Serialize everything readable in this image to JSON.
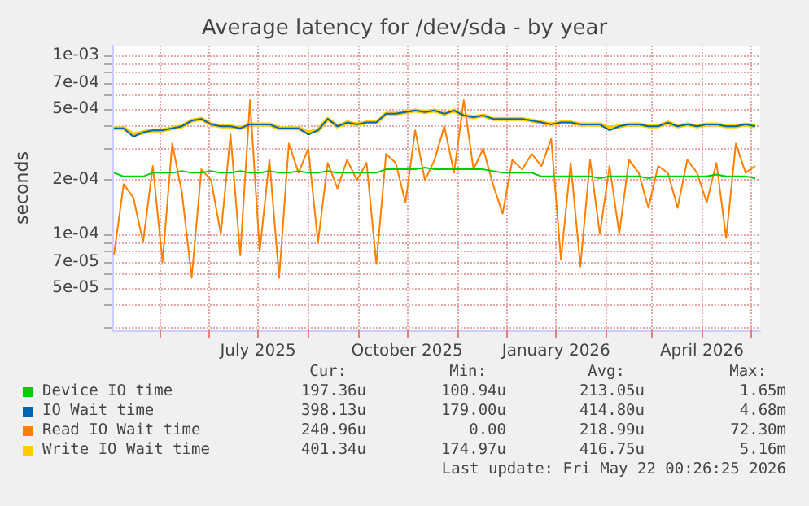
{
  "chart_data": {
    "type": "line",
    "title": "Average latency for /dev/sda - by year",
    "ylabel": "seconds",
    "log": "y",
    "grid": true,
    "legend": "bottom",
    "x": [
      "2025-04-03",
      "2025-04-09",
      "2025-04-15",
      "2025-04-21",
      "2025-04-27",
      "2025-05-03",
      "2025-05-09",
      "2025-05-15",
      "2025-05-21",
      "2025-05-27",
      "2025-06-02",
      "2025-06-08",
      "2025-06-14",
      "2025-06-20",
      "2025-06-26",
      "2025-07-02",
      "2025-07-08",
      "2025-07-14",
      "2025-07-20",
      "2025-07-26",
      "2025-08-01",
      "2025-08-07",
      "2025-08-13",
      "2025-08-19",
      "2025-08-25",
      "2025-08-31",
      "2025-09-06",
      "2025-09-12",
      "2025-09-18",
      "2025-09-24",
      "2025-09-30",
      "2025-10-06",
      "2025-10-12",
      "2025-10-18",
      "2025-10-24",
      "2025-10-30",
      "2025-11-05",
      "2025-11-11",
      "2025-11-17",
      "2025-11-23",
      "2025-11-29",
      "2025-12-05",
      "2025-12-11",
      "2025-12-17",
      "2025-12-23",
      "2025-12-29",
      "2026-01-04",
      "2026-01-10",
      "2026-01-16",
      "2026-01-22",
      "2026-01-28",
      "2026-02-03",
      "2026-02-09",
      "2026-02-15",
      "2026-02-21",
      "2026-02-27",
      "2026-03-05",
      "2026-03-11",
      "2026-03-17",
      "2026-03-23",
      "2026-03-29",
      "2026-04-04",
      "2026-04-10",
      "2026-04-16",
      "2026-04-22",
      "2026-04-28",
      "2026-05-04"
    ],
    "xlim": [
      "2025-04-02",
      "2026-05-07"
    ],
    "xticks": [
      {
        "value": "2025-05-01",
        "label": null
      },
      {
        "value": "2025-06-01",
        "label": null
      },
      {
        "value": "2025-07-01",
        "label": "July 2025"
      },
      {
        "value": "2025-08-01",
        "label": null
      },
      {
        "value": "2025-09-01",
        "label": null
      },
      {
        "value": "2025-10-01",
        "label": "October 2025"
      },
      {
        "value": "2025-11-01",
        "label": null
      },
      {
        "value": "2025-12-01",
        "label": null
      },
      {
        "value": "2026-01-01",
        "label": "January 2026"
      },
      {
        "value": "2026-02-01",
        "label": null
      },
      {
        "value": "2026-03-01",
        "label": null
      },
      {
        "value": "2026-04-01",
        "label": "April 2026"
      },
      {
        "value": "2026-05-01",
        "label": null
      }
    ],
    "ylim": [
      2.9e-05,
      0.00113
    ],
    "yticks": [
      {
        "value": 3e-05,
        "label": null
      },
      {
        "value": 4e-05,
        "label": null
      },
      {
        "value": 5e-05,
        "label": "5e-05"
      },
      {
        "value": 6e-05,
        "label": null
      },
      {
        "value": 7e-05,
        "label": "7e-05"
      },
      {
        "value": 8e-05,
        "label": null
      },
      {
        "value": 9e-05,
        "label": null
      },
      {
        "value": 0.0001,
        "label": "1e-04"
      },
      {
        "value": 0.0002,
        "label": "2e-04"
      },
      {
        "value": 0.0003,
        "label": null
      },
      {
        "value": 0.0004,
        "label": null
      },
      {
        "value": 0.0005,
        "label": "5e-04"
      },
      {
        "value": 0.0006,
        "label": null
      },
      {
        "value": 0.0007,
        "label": "7e-04"
      },
      {
        "value": 0.0008,
        "label": null
      },
      {
        "value": 0.0009,
        "label": null
      },
      {
        "value": 0.001,
        "label": "1e-03"
      }
    ],
    "series": [
      {
        "name": "Device IO time",
        "color": "#00cc00",
        "values": [
          0.00022,
          0.00021,
          0.00021,
          0.00021,
          0.00022,
          0.00022,
          0.00022,
          0.000225,
          0.00022,
          0.00022,
          0.000225,
          0.00022,
          0.00022,
          0.000225,
          0.00022,
          0.00022,
          0.000225,
          0.00022,
          0.00022,
          0.000225,
          0.00022,
          0.00022,
          0.000225,
          0.00022,
          0.00022,
          0.00022,
          0.00022,
          0.00022,
          0.00023,
          0.00023,
          0.00023,
          0.00023,
          0.000235,
          0.00023,
          0.00023,
          0.00023,
          0.00023,
          0.00023,
          0.00023,
          0.000225,
          0.00022,
          0.00022,
          0.00022,
          0.00022,
          0.00021,
          0.00021,
          0.00021,
          0.00021,
          0.00021,
          0.00021,
          0.000205,
          0.00021,
          0.00021,
          0.00021,
          0.00021,
          0.000205,
          0.00021,
          0.00021,
          0.00021,
          0.00021,
          0.00021,
          0.00021,
          0.000215,
          0.00021,
          0.00021,
          0.00021,
          0.000205
        ]
      },
      {
        "name": "IO Wait time",
        "color": "#0066b3",
        "values": [
          0.00039,
          0.00039,
          0.00035,
          0.00037,
          0.00038,
          0.00038,
          0.00039,
          0.0004,
          0.00043,
          0.00044,
          0.00041,
          0.0004,
          0.0004,
          0.00039,
          0.00041,
          0.00041,
          0.00041,
          0.00039,
          0.00039,
          0.00039,
          0.00036,
          0.00038,
          0.00044,
          0.0004,
          0.00042,
          0.00041,
          0.00042,
          0.00042,
          0.00047,
          0.00047,
          0.00048,
          0.00049,
          0.00048,
          0.00049,
          0.00047,
          0.00049,
          0.00046,
          0.00045,
          0.00046,
          0.00044,
          0.00044,
          0.00044,
          0.00044,
          0.00043,
          0.00042,
          0.00041,
          0.00042,
          0.00042,
          0.00041,
          0.00041,
          0.00041,
          0.00038,
          0.0004,
          0.00041,
          0.00041,
          0.0004,
          0.0004,
          0.00042,
          0.0004,
          0.00041,
          0.0004,
          0.00041,
          0.00041,
          0.0004,
          0.0004,
          0.00041,
          0.0004
        ]
      },
      {
        "name": "Read IO Wait time",
        "color": "#ff8000",
        "values": [
          7.6e-05,
          0.00019,
          0.00016,
          9e-05,
          0.00024,
          7e-05,
          0.00032,
          0.00017,
          5.7e-05,
          0.00023,
          0.0002,
          0.0001,
          0.00036,
          7.6e-05,
          0.00056,
          8e-05,
          0.00026,
          5.7e-05,
          0.00032,
          0.00022,
          0.0003,
          9e-05,
          0.00025,
          0.00018,
          0.00026,
          0.0002,
          0.00025,
          6.8e-05,
          0.00028,
          0.00025,
          0.00015,
          0.00038,
          0.0002,
          0.00026,
          0.0004,
          0.00022,
          0.00056,
          0.00023,
          0.0003,
          0.00019,
          0.00013,
          0.00026,
          0.00023,
          0.00028,
          0.00024,
          0.00034,
          7.2e-05,
          0.00025,
          6.6e-05,
          0.00026,
          0.0001,
          0.00024,
          0.0001,
          0.00026,
          0.00022,
          0.00014,
          0.00024,
          0.00022,
          0.00014,
          0.00026,
          0.00022,
          0.00015,
          0.00025,
          9.5e-05,
          0.00032,
          0.00022,
          0.00024
        ]
      },
      {
        "name": "Write IO Wait time",
        "color": "#ffcc00",
        "values": [
          0.00039,
          0.00039,
          0.00036,
          0.00037,
          0.00038,
          0.00038,
          0.00039,
          0.0004,
          0.00043,
          0.00044,
          0.00041,
          0.0004,
          0.0004,
          0.00039,
          0.00041,
          0.00041,
          0.00041,
          0.00039,
          0.00039,
          0.00039,
          0.00037,
          0.00038,
          0.00044,
          0.0004,
          0.00042,
          0.00041,
          0.00042,
          0.00042,
          0.00047,
          0.00047,
          0.00048,
          0.00049,
          0.00048,
          0.00049,
          0.00047,
          0.00049,
          0.00046,
          0.00045,
          0.00046,
          0.00044,
          0.00044,
          0.00044,
          0.00044,
          0.00043,
          0.00042,
          0.00041,
          0.00042,
          0.00042,
          0.00041,
          0.00041,
          0.00041,
          0.00039,
          0.0004,
          0.00041,
          0.00041,
          0.0004,
          0.0004,
          0.00042,
          0.0004,
          0.00041,
          0.0004,
          0.00041,
          0.00041,
          0.0004,
          0.0004,
          0.00041,
          0.0004
        ]
      }
    ],
    "annotations": [
      "Cur:",
      "Min:",
      "Avg:",
      "Max:",
      "197.36u",
      "100.94u",
      "213.05u",
      "1.65m",
      "398.13u",
      "179.00u",
      "414.80u",
      "4.68m",
      "240.96u",
      "0.00",
      "218.99u",
      "72.30m",
      "401.34u",
      "174.97u",
      "416.75u",
      "5.16m",
      "Last update: Fri May 22 00:26:25 2026"
    ]
  }
}
